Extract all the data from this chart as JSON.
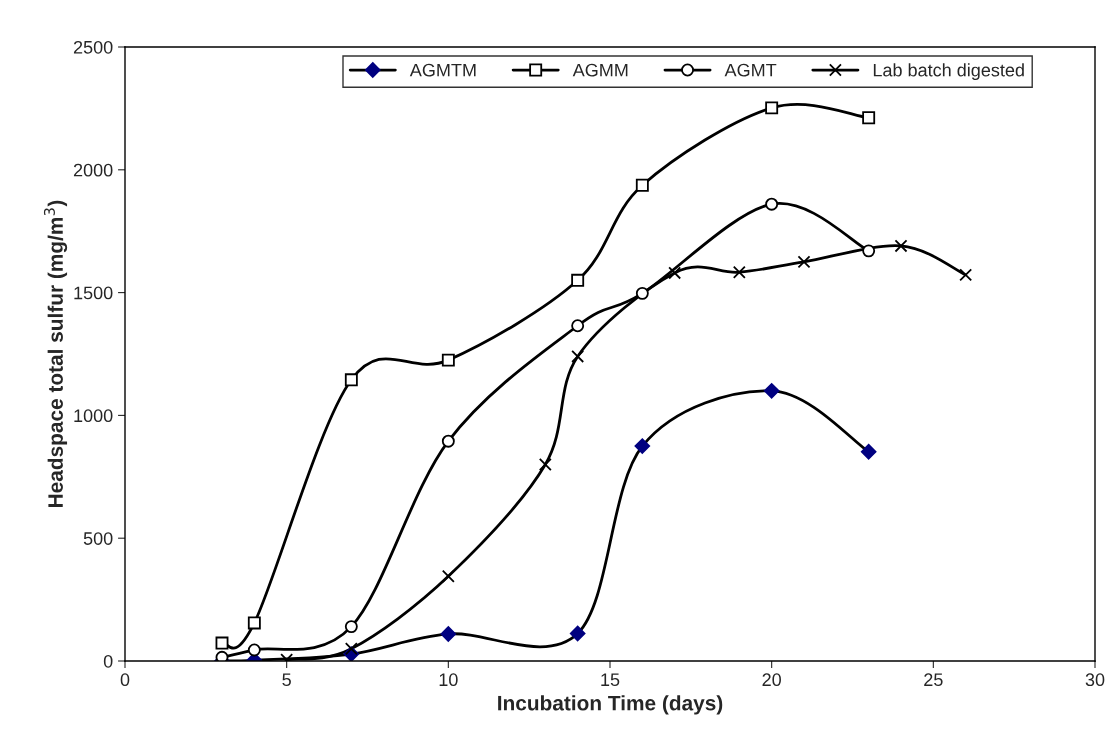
{
  "chart_data": {
    "type": "line",
    "xlabel": "Incubation Time (days)",
    "ylabel": "Headspace total sulfur (mg/m$^{3}$)",
    "xlim": [
      0,
      30
    ],
    "xticks": [
      0,
      5,
      10,
      15,
      20,
      25,
      30
    ],
    "ylim": [
      0,
      2500
    ],
    "yticks": [
      0,
      500,
      1000,
      1500,
      2000,
      2500
    ],
    "grid": false,
    "legend": "top",
    "line_style": "solid",
    "series": [
      {
        "name": "AGMTM",
        "color": "#000080",
        "marker": "diamond",
        "x": [
          3,
          4,
          7,
          10,
          14,
          16,
          20,
          23
        ],
        "values": [
          0,
          3,
          28,
          110,
          112,
          875,
          1100,
          852
        ]
      },
      {
        "name": "AGMM",
        "color": "#000000",
        "marker": "square",
        "x": [
          3,
          4,
          7,
          10,
          14,
          16,
          20,
          23
        ],
        "values": [
          73,
          155,
          1145,
          1225,
          1550,
          1937,
          2252,
          2212
        ]
      },
      {
        "name": "AGMT",
        "color": "#000000",
        "marker": "circle",
        "x": [
          3,
          4,
          7,
          10,
          14,
          16,
          20,
          23
        ],
        "values": [
          15,
          45,
          140,
          895,
          1365,
          1497,
          1860,
          1670
        ]
      },
      {
        "name": "Lab batch digested",
        "color": "#000000",
        "marker": "cross",
        "x": [
          5,
          7,
          10,
          13,
          14,
          17,
          19,
          21,
          24,
          26
        ],
        "values": [
          5,
          50,
          345,
          800,
          1240,
          1580,
          1583,
          1625,
          1690,
          1572
        ]
      }
    ]
  }
}
